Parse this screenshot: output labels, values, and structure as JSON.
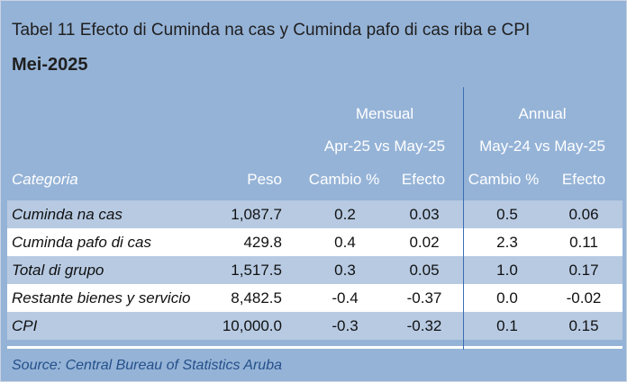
{
  "title": "Tabel 11 Efecto di Cuminda na cas y Cuminda pafo di cas riba e CPI",
  "subtitle": "Mei-2025",
  "header": {
    "group_mensual": "Mensual",
    "group_annual": "Annual",
    "period_mensual": "Apr-25 vs May-25",
    "period_annual": "May-24 vs May-25",
    "col_categoria": "Categoria",
    "col_peso": "Peso",
    "col_cambio_m": "Cambio %",
    "col_efecto_m": "Efecto",
    "col_cambio_a": "Cambio %",
    "col_efecto_a": "Efecto"
  },
  "rows": [
    {
      "categoria": "Cuminda na cas",
      "peso": "1,087.7",
      "cambio_m": "0.2",
      "efecto_m": "0.03",
      "cambio_a": "0.5",
      "efecto_a": "0.06"
    },
    {
      "categoria": "Cuminda pafo di cas",
      "peso": "429.8",
      "cambio_m": "0.4",
      "efecto_m": "0.02",
      "cambio_a": "2.3",
      "efecto_a": "0.11"
    },
    {
      "categoria": "Total di grupo",
      "peso": "1,517.5",
      "cambio_m": "0.3",
      "efecto_m": "0.05",
      "cambio_a": "1.0",
      "efecto_a": "0.17"
    },
    {
      "categoria": "Restante bienes y servicio",
      "peso": "8,482.5",
      "cambio_m": "-0.4",
      "efecto_m": "-0.37",
      "cambio_a": "0.0",
      "efecto_a": "-0.02"
    },
    {
      "categoria": "CPI",
      "peso": "10,000.0",
      "cambio_m": "-0.3",
      "efecto_m": "-0.32",
      "cambio_a": "0.1",
      "efecto_a": "0.15"
    }
  ],
  "source": "Source: Central Bureau of Statistics Aruba",
  "colors": {
    "background": "#95b3d7",
    "band_dark": "#b7cae2",
    "band_light": "#ffffff",
    "header_text": "#ffffff",
    "source_text": "#24508a",
    "divider": "#3a6db5"
  }
}
